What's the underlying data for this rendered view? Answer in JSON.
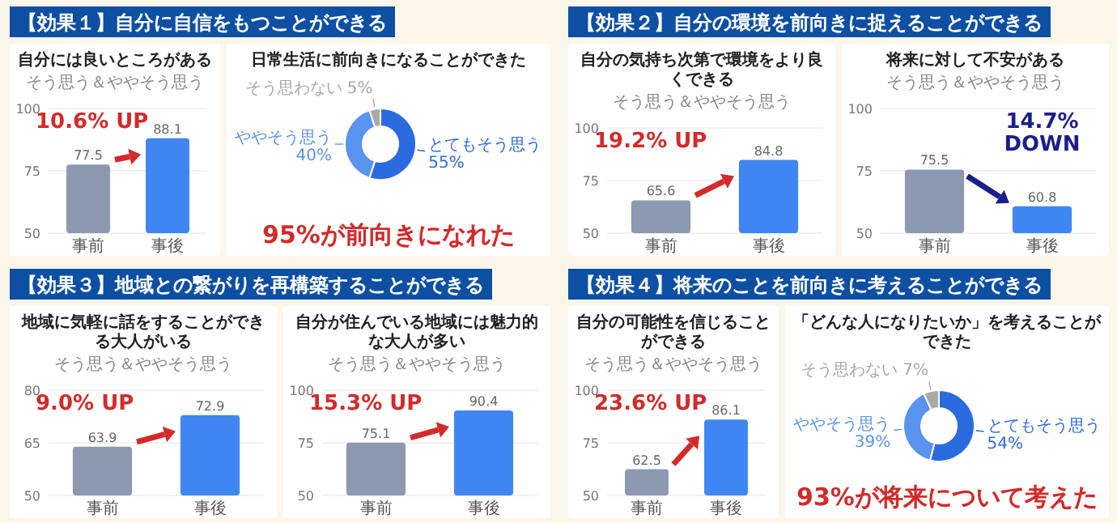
{
  "chart_data": [
    {
      "type": "bar",
      "title": "自分には良いところがある",
      "subtitle": "そう思う＆ややそう思う",
      "categories": [
        "事前",
        "事後"
      ],
      "values": [
        77.5,
        88.1
      ],
      "colors": [
        "#8d99b0",
        "#3f86f2"
      ],
      "ylim": [
        50,
        100
      ],
      "yticks": [
        50,
        75,
        100
      ],
      "data_labels": true,
      "grid": "y",
      "annotations": [
        "【効果１】自分に自信をもつことができる",
        "10.6% UP"
      ]
    },
    {
      "type": "donut",
      "title": "日常生活に前向きになることができた",
      "categories": [
        "とてもそう思う",
        "ややそう思う",
        "そう思わない"
      ],
      "values": [
        55,
        40,
        5
      ],
      "value_labels": [
        "55%",
        "40%",
        "5%"
      ],
      "colors": [
        "#2b6be0",
        "#5a93f0",
        "#a9a9a9"
      ],
      "annotations": [
        "95%が前向きになれた"
      ]
    },
    {
      "type": "bar",
      "title": "自分の気持ち次第で環境をより良くできる",
      "subtitle": "そう思う＆ややそう思う",
      "categories": [
        "事前",
        "事後"
      ],
      "values": [
        65.6,
        84.8
      ],
      "colors": [
        "#8d99b0",
        "#3f86f2"
      ],
      "ylim": [
        50,
        100
      ],
      "yticks": [
        50,
        75,
        100
      ],
      "data_labels": true,
      "grid": "y",
      "annotations": [
        "【効果２】自分の環境を前向きに捉えることができる",
        "19.2% UP"
      ]
    },
    {
      "type": "bar",
      "title": "将来に対して不安がある",
      "subtitle": "そう思う＆ややそう思う",
      "categories": [
        "事前",
        "事後"
      ],
      "values": [
        75.5,
        60.8
      ],
      "colors": [
        "#8d99b0",
        "#3f86f2"
      ],
      "ylim": [
        50,
        100
      ],
      "yticks": [
        50,
        75,
        100
      ],
      "data_labels": true,
      "grid": "y",
      "annotations": [
        "14.7% DOWN"
      ]
    },
    {
      "type": "bar",
      "title": "地域に気軽に話をすることができる大人がいる",
      "subtitle": "そう思う＆ややそう思う",
      "categories": [
        "事前",
        "事後"
      ],
      "values": [
        63.9,
        72.9
      ],
      "colors": [
        "#8d99b0",
        "#3f86f2"
      ],
      "ylim": [
        50,
        80
      ],
      "yticks": [
        50,
        65,
        80
      ],
      "data_labels": true,
      "grid": "y",
      "annotations": [
        "【効果３】地域との繋がりを再構築することができる",
        "9.0% UP"
      ]
    },
    {
      "type": "bar",
      "title": "自分が住んでいる地域には魅力的な大人が多い",
      "subtitle": "そう思う＆ややそう思う",
      "categories": [
        "事前",
        "事後"
      ],
      "values": [
        75.1,
        90.4
      ],
      "colors": [
        "#8d99b0",
        "#3f86f2"
      ],
      "ylim": [
        50,
        100
      ],
      "yticks": [
        50,
        75,
        100
      ],
      "data_labels": true,
      "grid": "y",
      "annotations": [
        "15.3% UP"
      ]
    },
    {
      "type": "bar",
      "title": "自分の可能性を信じることができる",
      "subtitle": "そう思う＆ややそう思う",
      "categories": [
        "事前",
        "事後"
      ],
      "values": [
        62.5,
        86.1
      ],
      "colors": [
        "#8d99b0",
        "#3f86f2"
      ],
      "ylim": [
        50,
        100
      ],
      "yticks": [
        50,
        75,
        100
      ],
      "data_labels": true,
      "grid": "y",
      "annotations": [
        "【効果４】将来のことを前向きに考えることができる",
        "23.6% UP"
      ]
    },
    {
      "type": "donut",
      "title": "「どんな人になりたいか」を考えることができた",
      "categories": [
        "とてもそう思う",
        "ややそう思う",
        "そう思わない"
      ],
      "values": [
        54,
        39,
        7
      ],
      "value_labels": [
        "54%",
        "39%",
        "7%"
      ],
      "colors": [
        "#2b6be0",
        "#5a93f0",
        "#a9a9a9"
      ],
      "annotations": [
        "93%が将来について考えた"
      ]
    }
  ]
}
